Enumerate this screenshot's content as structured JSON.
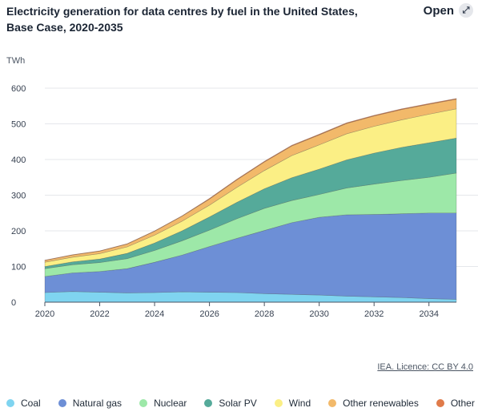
{
  "header": {
    "title": "Electricity generation for data centres by fuel in the United States, Base Case, 2020-2035",
    "open_label": "Open",
    "open_icon": "expand-arrows-icon"
  },
  "footer": {
    "licence": "IEA. Licence: CC BY 4.0"
  },
  "chart_data": {
    "type": "area",
    "stacked": true,
    "unit": "TWh",
    "x": [
      2020,
      2021,
      2022,
      2023,
      2024,
      2025,
      2026,
      2027,
      2028,
      2029,
      2030,
      2031,
      2032,
      2033,
      2034,
      2035
    ],
    "xticks": [
      2020,
      2022,
      2024,
      2026,
      2028,
      2030,
      2032,
      2034
    ],
    "ylim": [
      0,
      600
    ],
    "yticks": [
      0,
      100,
      200,
      300,
      400,
      500,
      600
    ],
    "grid": true,
    "legend_position": "bottom",
    "series": [
      {
        "name": "Coal",
        "color": "#7fd4f0",
        "values": [
          27,
          30,
          28,
          26,
          27,
          29,
          28,
          27,
          24,
          22,
          20,
          17,
          15,
          13,
          10,
          8
        ]
      },
      {
        "name": "Natural gas",
        "color": "#6d8fd6",
        "values": [
          45,
          52,
          58,
          68,
          85,
          103,
          128,
          152,
          177,
          201,
          218,
          228,
          231,
          235,
          240,
          242
        ]
      },
      {
        "name": "Nuclear",
        "color": "#9de8a8",
        "values": [
          22,
          23,
          25,
          28,
          33,
          40,
          46,
          55,
          62,
          62,
          64,
          75,
          85,
          93,
          100,
          112
        ]
      },
      {
        "name": "Solar PV",
        "color": "#55aa9a",
        "values": [
          6,
          8,
          10,
          15,
          21,
          28,
          37,
          46,
          55,
          64,
          71,
          79,
          87,
          93,
          97,
          98
        ]
      },
      {
        "name": "Wind",
        "color": "#fbef85",
        "values": [
          12,
          13,
          15,
          18,
          22,
          27,
          33,
          42,
          51,
          62,
          68,
          73,
          75,
          77,
          80,
          82
        ]
      },
      {
        "name": "Other renewables",
        "color": "#f2b96a",
        "values": [
          5,
          6,
          7,
          8,
          11,
          14,
          17,
          21,
          24,
          27,
          28,
          29,
          29,
          29,
          28,
          27
        ]
      },
      {
        "name": "Other",
        "color": "#e07b4a",
        "values": [
          1,
          1,
          1,
          1,
          1,
          1,
          2,
          2,
          2,
          2,
          2,
          2,
          2,
          2,
          2,
          2
        ]
      }
    ]
  }
}
